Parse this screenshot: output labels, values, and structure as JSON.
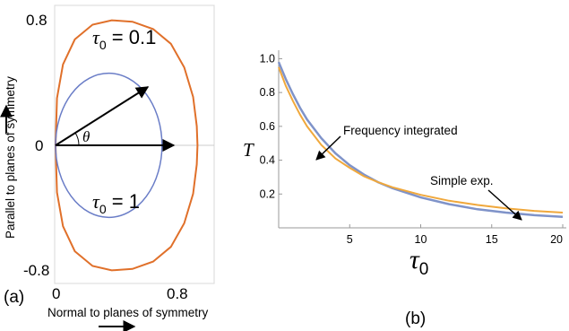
{
  "chart_data": [
    {
      "panel": "(a)",
      "type": "line",
      "xlabel": "Normal to planes of symmetry",
      "ylabel": "Parallel to planes of symmetry",
      "x_ticks": [
        "0",
        "0.8"
      ],
      "y_ticks": [
        "0.8",
        "0",
        "-0.8"
      ],
      "xlim": [
        -0.02,
        1.05
      ],
      "ylim": [
        -0.88,
        0.88
      ],
      "angle_label": "θ",
      "series": [
        {
          "name": "τ0 = 0.1",
          "label_main": "τ",
          "label_sub": "0",
          "label_rest": " = 0.1",
          "color": "#E0702A",
          "points": [
            [
              0.0,
              0.0
            ],
            [
              0.01,
              0.32
            ],
            [
              0.05,
              0.55
            ],
            [
              0.13,
              0.72
            ],
            [
              0.25,
              0.82
            ],
            [
              0.38,
              0.85
            ],
            [
              0.52,
              0.84
            ],
            [
              0.66,
              0.79
            ],
            [
              0.78,
              0.69
            ],
            [
              0.87,
              0.53
            ],
            [
              0.93,
              0.33
            ],
            [
              0.955,
              0.13
            ],
            [
              0.96,
              0.0
            ],
            [
              0.955,
              -0.13
            ],
            [
              0.93,
              -0.33
            ],
            [
              0.87,
              -0.53
            ],
            [
              0.78,
              -0.69
            ],
            [
              0.66,
              -0.79
            ],
            [
              0.52,
              -0.84
            ],
            [
              0.38,
              -0.85
            ],
            [
              0.25,
              -0.82
            ],
            [
              0.13,
              -0.72
            ],
            [
              0.05,
              -0.55
            ],
            [
              0.01,
              -0.32
            ],
            [
              0.0,
              0.0
            ]
          ]
        },
        {
          "name": "τ0 = 1",
          "label_main": "τ",
          "label_sub": "0",
          "label_rest": " = 1",
          "color": "#6A7DC7",
          "ellipse": {
            "cx": 0.36,
            "cy": 0.0,
            "rx": 0.36,
            "ry": 0.49
          }
        }
      ]
    },
    {
      "panel": "(b)",
      "type": "line",
      "ylabel": "T",
      "xlabel_main": "τ",
      "xlabel_sub": "0",
      "xlim": [
        0,
        20
      ],
      "ylim": [
        0,
        1.05
      ],
      "x_ticks": [
        5,
        10,
        15,
        20
      ],
      "y_ticks": [
        0.2,
        0.4,
        0.6,
        0.8,
        1.0
      ],
      "annotations": [
        {
          "text": "Frequency integrated",
          "target": [
            2.6,
            0.48
          ]
        },
        {
          "text": "Simple exp.",
          "target": [
            17.5,
            0.09
          ]
        }
      ],
      "series": [
        {
          "name": "Frequency integrated",
          "color": "#7F93C9",
          "x": [
            0,
            0.5,
            1,
            1.5,
            2,
            3,
            4,
            5,
            6,
            7,
            8,
            10,
            12,
            14,
            16,
            18,
            20
          ],
          "y": [
            0.98,
            0.88,
            0.79,
            0.71,
            0.64,
            0.53,
            0.44,
            0.37,
            0.315,
            0.27,
            0.235,
            0.18,
            0.14,
            0.11,
            0.09,
            0.075,
            0.065
          ]
        },
        {
          "name": "Simple exp.",
          "color": "#F0A83C",
          "x": [
            0,
            0.5,
            1,
            1.5,
            2,
            3,
            4,
            5,
            6,
            7,
            8,
            10,
            12,
            14,
            16,
            18,
            20
          ],
          "y": [
            0.95,
            0.84,
            0.75,
            0.67,
            0.6,
            0.49,
            0.41,
            0.355,
            0.305,
            0.27,
            0.24,
            0.195,
            0.16,
            0.135,
            0.115,
            0.1,
            0.09
          ]
        }
      ]
    }
  ],
  "labels": {
    "panel_a": "(a)",
    "panel_b": "(b)",
    "axis_tick_zero_y": "0"
  }
}
